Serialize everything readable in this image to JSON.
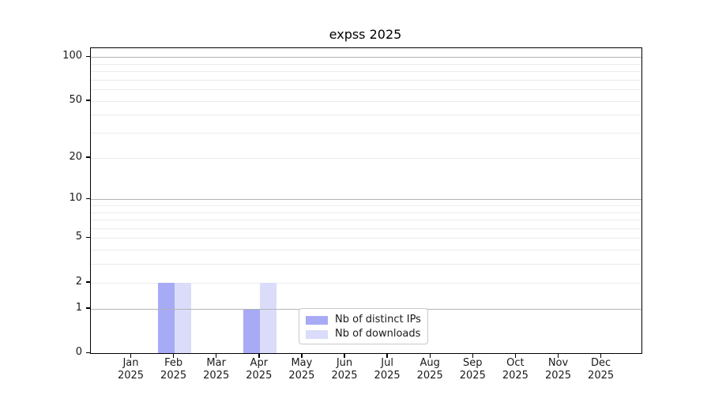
{
  "chart_data": {
    "type": "bar",
    "title": "expss 2025",
    "categories": [
      "Jan 2025",
      "Feb 2025",
      "Mar 2025",
      "Apr 2025",
      "May 2025",
      "Jun 2025",
      "Jul 2025",
      "Aug 2025",
      "Sep 2025",
      "Oct 2025",
      "Nov 2025",
      "Dec 2025"
    ],
    "x_months": [
      "Jan",
      "Feb",
      "Mar",
      "Apr",
      "May",
      "Jun",
      "Jul",
      "Aug",
      "Sep",
      "Oct",
      "Nov",
      "Dec"
    ],
    "x_year": "2025",
    "series": [
      {
        "name": "Nb of distinct IPs",
        "color": "#a7aaf5",
        "values": [
          0,
          2,
          0,
          1,
          0,
          0,
          0,
          0,
          0,
          0,
          0,
          0
        ]
      },
      {
        "name": "Nb of downloads",
        "color": "#dadcfa",
        "values": [
          0,
          2,
          0,
          2,
          0,
          0,
          0,
          0,
          0,
          0,
          0,
          0
        ]
      }
    ],
    "xlabel": "",
    "ylabel": "",
    "ylim": [
      0,
      100
    ],
    "yscale": "symlog-log1p",
    "y_tick_values": [
      100,
      50,
      20,
      10,
      5,
      2,
      1,
      0
    ],
    "y_major_gridlines": [
      1,
      10,
      100
    ],
    "y_minor_gridlines": [
      2,
      3,
      4,
      5,
      6,
      7,
      8,
      9,
      20,
      30,
      40,
      50,
      60,
      70,
      80,
      90
    ],
    "grid": "on",
    "legend_position": "lower center"
  },
  "colors": {
    "minor_grid": "#ebebeb",
    "major_grid": "#b4b4b4",
    "axis_frame": "#000000",
    "tick_text": "#1a1a1a"
  }
}
